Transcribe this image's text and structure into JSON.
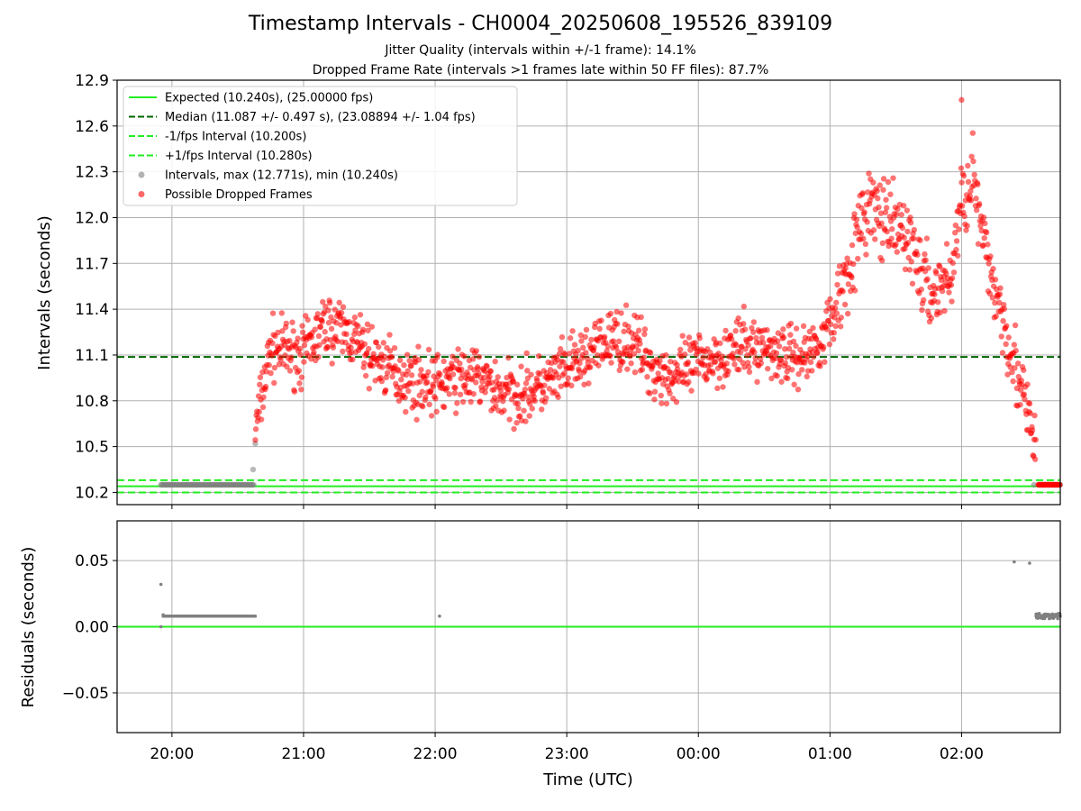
{
  "title": "Timestamp Intervals - CH0004_20250608_195526_839109",
  "subtitle1": "Jitter Quality (intervals within +/-1 frame): 14.1%",
  "subtitle2": "Dropped Frame Rate (intervals >1 frames late within 50 FF files): 87.7%",
  "colors": {
    "expected": "#22ee22",
    "median": "#006400",
    "interval_band": "#22ee22",
    "normal_points": "#808080",
    "dropped_points": "#ff0000",
    "grid": "#b0b0b0"
  },
  "chart_data": [
    {
      "type": "scatter",
      "ylabel": "Intervals (seconds)",
      "xlabel": "",
      "ylim": [
        10.12,
        12.9
      ],
      "yticks": [
        "10.2",
        "10.5",
        "10.8",
        "11.1",
        "11.4",
        "11.7",
        "12.0",
        "12.3",
        "12.6",
        "12.9"
      ],
      "ytick_values": [
        10.2,
        10.5,
        10.8,
        11.1,
        11.4,
        11.7,
        12.0,
        12.3,
        12.6,
        12.9
      ],
      "x_range": [
        "19:35",
        "02:45"
      ],
      "grid": true,
      "legend_position": "top-left",
      "reference_lines": [
        {
          "name": "Expected (10.240s), (25.00000 fps)",
          "y": 10.24,
          "style": "solid",
          "color": "#22ee22"
        },
        {
          "name": "Median (11.087 +/- 0.497 s), (23.08894 +/- 1.04 fps)",
          "y": 11.087,
          "style": "dashed",
          "color": "#006400"
        },
        {
          "name": "-1/fps Interval (10.200s)",
          "y": 10.2,
          "style": "dashed",
          "color": "#22ee22"
        },
        {
          "name": "+1/fps Interval (10.280s)",
          "y": 10.28,
          "style": "dashed",
          "color": "#22ee22"
        }
      ],
      "series": [
        {
          "name": "Intervals, max (12.771s), min (10.240s)",
          "color": "#808080",
          "points": [
            [
              "19:55",
              10.25
            ],
            [
              "20:05",
              10.25
            ],
            [
              "20:15",
              10.25
            ],
            [
              "20:25",
              10.25
            ],
            [
              "20:35",
              10.25
            ],
            [
              "20:37",
              10.35
            ],
            [
              "20:38",
              10.52
            ],
            [
              "02:33",
              10.25
            ],
            [
              "02:40",
              10.25
            ],
            [
              "02:45",
              10.25
            ]
          ]
        },
        {
          "name": "Possible Dropped Frames",
          "color": "#ff0000",
          "trend": [
            [
              "20:38",
              10.6
            ],
            [
              "20:45",
              11.15
            ],
            [
              "21:00",
              11.1
            ],
            [
              "21:10",
              11.3
            ],
            [
              "21:20",
              11.25
            ],
            [
              "21:30",
              11.1
            ],
            [
              "21:45",
              10.95
            ],
            [
              "22:00",
              10.9
            ],
            [
              "22:10",
              10.95
            ],
            [
              "22:20",
              10.95
            ],
            [
              "22:30",
              10.85
            ],
            [
              "22:40",
              10.85
            ],
            [
              "22:50",
              10.9
            ],
            [
              "23:00",
              11.0
            ],
            [
              "23:10",
              11.1
            ],
            [
              "23:20",
              11.2
            ],
            [
              "23:30",
              11.2
            ],
            [
              "23:40",
              11.0
            ],
            [
              "23:50",
              10.95
            ],
            [
              "00:00",
              11.05
            ],
            [
              "00:10",
              11.1
            ],
            [
              "00:20",
              11.15
            ],
            [
              "00:30",
              11.15
            ],
            [
              "00:40",
              11.1
            ],
            [
              "00:50",
              11.1
            ],
            [
              "01:00",
              11.3
            ],
            [
              "01:10",
              11.75
            ],
            [
              "01:18",
              12.1
            ],
            [
              "01:25",
              11.95
            ],
            [
              "01:35",
              11.9
            ],
            [
              "01:45",
              11.5
            ],
            [
              "01:55",
              11.6
            ],
            [
              "02:00",
              12.1
            ],
            [
              "02:05",
              12.3
            ],
            [
              "02:10",
              11.8
            ],
            [
              "02:20",
              11.3
            ],
            [
              "02:25",
              11.0
            ],
            [
              "02:30",
              10.7
            ],
            [
              "02:34",
              10.45
            ]
          ],
          "max": 12.771,
          "tail": [
            [
              "02:35",
              10.25
            ],
            [
              "02:45",
              10.25
            ]
          ]
        }
      ]
    },
    {
      "type": "scatter",
      "ylabel": "Residuals (seconds)",
      "xlabel": "Time (UTC)",
      "ylim": [
        -0.08,
        0.08
      ],
      "yticks": [
        "−0.05",
        "0.00",
        "0.05"
      ],
      "ytick_values": [
        -0.05,
        0.0,
        0.05
      ],
      "xticks": [
        "20:00",
        "21:00",
        "22:00",
        "23:00",
        "00:00",
        "01:00",
        "02:00"
      ],
      "grid": true,
      "reference_line": {
        "y": 0.0,
        "color": "#22ee22"
      },
      "series": [
        {
          "color": "#808080",
          "points": [
            [
              "19:55",
              0.032
            ],
            [
              "19:55",
              0.0
            ],
            [
              "19:56",
              0.009
            ],
            [
              "20:38",
              0.008
            ],
            [
              "22:02",
              0.008
            ],
            [
              "02:24",
              0.049
            ],
            [
              "02:31",
              0.048
            ],
            [
              "02:34",
              0.008
            ],
            [
              "02:45",
              0.008
            ]
          ],
          "dense_runs": [
            {
              "from": "19:56",
              "to": "20:38",
              "y": 0.008
            },
            {
              "from": "02:34",
              "to": "02:45",
              "y": 0.008
            }
          ]
        }
      ]
    }
  ]
}
